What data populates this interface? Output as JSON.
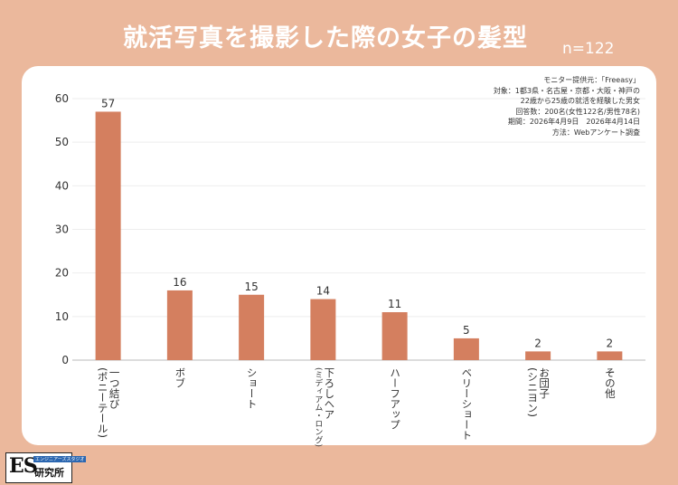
{
  "header": {
    "title": "就活写真を撮影した際の女子の髪型",
    "sample": "n=122"
  },
  "notes": [
    "モニター提供元：「Freeasy」",
    "対象：1都3県・名古屋・京都・大阪・神戸の",
    "22歳から25歳の就活を経験した男女",
    "回答数：200名(女性122名/男性78名)",
    "期間：2026年4月9日　2026年4月14日",
    "方法：Webアンケート調査"
  ],
  "logo": {
    "mark": "ES",
    "tag": "エンジニアーズスタジオ",
    "name": "研究所"
  },
  "colors": {
    "background": "#EBB89C",
    "bar": "#D47F5F"
  },
  "chart_data": {
    "type": "bar",
    "title": "就活写真を撮影した際の女子の髪型",
    "categories": [
      [
        "一つ結び",
        "(ポニーテール)"
      ],
      [
        "ボブ"
      ],
      [
        "ショート"
      ],
      [
        "下ろしヘア",
        "(ミディアム・ロング)"
      ],
      [
        "ハーフアップ"
      ],
      [
        "ベリーショート"
      ],
      [
        "お団子",
        "(シニヨン)"
      ],
      [
        "その他"
      ]
    ],
    "values": [
      57,
      16,
      15,
      14,
      11,
      5,
      2,
      2
    ],
    "yticks": [
      0,
      10,
      20,
      30,
      40,
      50,
      60
    ],
    "ylim": [
      0,
      60
    ],
    "grid": true,
    "xlabel": "",
    "ylabel": ""
  }
}
